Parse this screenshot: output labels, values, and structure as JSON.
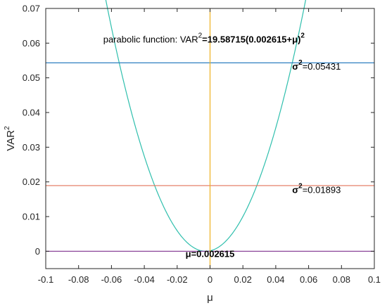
{
  "chart_data": {
    "type": "line",
    "title": "",
    "xlabel": "μ",
    "ylabel_base": "VAR",
    "ylabel_sup": "2",
    "xlim": [
      -0.1,
      0.1
    ],
    "ylim": [
      -0.005,
      0.07
    ],
    "xticks": [
      -0.1,
      -0.08,
      -0.06,
      -0.04,
      -0.02,
      0,
      0.02,
      0.04,
      0.06,
      0.08,
      0.1
    ],
    "xtick_labels": [
      "-0.1",
      "-0.08",
      "-0.06",
      "-0.04",
      "-0.02",
      "0",
      "0.02",
      "0.04",
      "0.06",
      "0.08",
      "0.1"
    ],
    "yticks": [
      0,
      0.01,
      0.02,
      0.03,
      0.04,
      0.05,
      0.06,
      0.07
    ],
    "ytick_labels": [
      "0",
      "0.01",
      "0.02",
      "0.03",
      "0.04",
      "0.05",
      "0.06",
      "0.07"
    ],
    "grid": false,
    "legend": false,
    "series": [
      {
        "kind": "parabola",
        "a": 19.58715,
        "h": -0.002615,
        "color": "#2fbfad",
        "x_range": [
          -0.064,
          0.059
        ]
      },
      {
        "kind": "hline",
        "y": 0.05431,
        "color": "#2f7fc0"
      },
      {
        "kind": "hline",
        "y": 0.01893,
        "color": "#e2735a"
      },
      {
        "kind": "hline",
        "y": 0.0,
        "color": "#7e2f8e"
      },
      {
        "kind": "vline",
        "x": 0.0,
        "color": "#edb120"
      }
    ],
    "annotations": {
      "parabola": {
        "prefix": "parabolic function: VAR",
        "sup1": "2",
        "equals": "=19.58715(0.002615+μ)",
        "sup2": "2",
        "x": -0.065,
        "y": 0.0602
      },
      "sigma1": {
        "base": "σ",
        "sup": "2",
        "value": "=0.05431",
        "x": 0.05,
        "y": 0.0524
      },
      "sigma2": {
        "base": "σ",
        "sup": "2",
        "value": "=0.01893",
        "x": 0.05,
        "y": 0.0168
      },
      "mu": {
        "text": "μ=0.002615",
        "x": 0.0,
        "y": -0.0017
      }
    }
  }
}
